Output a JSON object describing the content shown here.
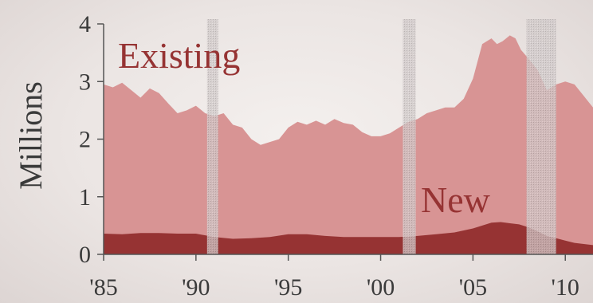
{
  "chart_data": {
    "type": "area",
    "ylabel": "Millions",
    "ylim": [
      0,
      4
    ],
    "xlim": [
      1985,
      2011.5
    ],
    "y_ticks": [
      0,
      1,
      2,
      3,
      4
    ],
    "x_ticks": [
      {
        "value": 1985,
        "label": "'85"
      },
      {
        "value": 1990,
        "label": "'90"
      },
      {
        "value": 1995,
        "label": "'95"
      },
      {
        "value": 2000,
        "label": "'00"
      },
      {
        "value": 2005,
        "label": "'05"
      },
      {
        "value": 2010,
        "label": "'10"
      }
    ],
    "recession_bands": [
      [
        1990.6,
        1991.2
      ],
      [
        2001.2,
        2001.9
      ],
      [
        2007.9,
        2009.5
      ]
    ],
    "series": [
      {
        "name": "Existing",
        "color": "#d89494",
        "x": [
          1985,
          1985.5,
          1986,
          1986.5,
          1987,
          1987.5,
          1988,
          1988.5,
          1989,
          1989.5,
          1990,
          1990.5,
          1991,
          1991.5,
          1992,
          1992.5,
          1993,
          1993.5,
          1994,
          1994.5,
          1995,
          1995.5,
          1996,
          1996.5,
          1997,
          1997.5,
          1998,
          1998.5,
          1999,
          1999.5,
          2000,
          2000.5,
          2001,
          2001.5,
          2002,
          2002.5,
          2003,
          2003.5,
          2004,
          2004.5,
          2005,
          2005.5,
          2006,
          2006.3,
          2006.6,
          2007,
          2007.3,
          2007.6,
          2008,
          2008.5,
          2009,
          2009.5,
          2010,
          2010.5,
          2011,
          2011.5
        ],
        "y": [
          2.95,
          2.9,
          2.98,
          2.85,
          2.72,
          2.88,
          2.8,
          2.62,
          2.45,
          2.5,
          2.58,
          2.45,
          2.4,
          2.45,
          2.25,
          2.2,
          2.0,
          1.9,
          1.95,
          2.0,
          2.2,
          2.3,
          2.25,
          2.32,
          2.25,
          2.35,
          2.28,
          2.25,
          2.12,
          2.05,
          2.05,
          2.1,
          2.2,
          2.3,
          2.35,
          2.45,
          2.5,
          2.55,
          2.55,
          2.7,
          3.05,
          3.65,
          3.75,
          3.65,
          3.7,
          3.8,
          3.75,
          3.55,
          3.4,
          3.2,
          2.85,
          2.95,
          3.0,
          2.95,
          2.75,
          2.55
        ]
      },
      {
        "name": "New",
        "color": "#963333",
        "x": [
          1985,
          1986,
          1987,
          1988,
          1989,
          1990,
          1991,
          1992,
          1993,
          1994,
          1995,
          1996,
          1997,
          1998,
          1999,
          2000,
          2001,
          2002,
          2003,
          2004,
          2005,
          2005.5,
          2006,
          2006.5,
          2007,
          2007.5,
          2008,
          2008.5,
          2009,
          2009.5,
          2010,
          2010.5,
          2011,
          2011.5
        ],
        "y": [
          0.36,
          0.35,
          0.37,
          0.37,
          0.36,
          0.36,
          0.3,
          0.27,
          0.28,
          0.3,
          0.35,
          0.35,
          0.32,
          0.3,
          0.3,
          0.3,
          0.3,
          0.32,
          0.35,
          0.38,
          0.45,
          0.5,
          0.55,
          0.56,
          0.54,
          0.52,
          0.47,
          0.4,
          0.32,
          0.28,
          0.24,
          0.2,
          0.18,
          0.16
        ]
      }
    ]
  }
}
